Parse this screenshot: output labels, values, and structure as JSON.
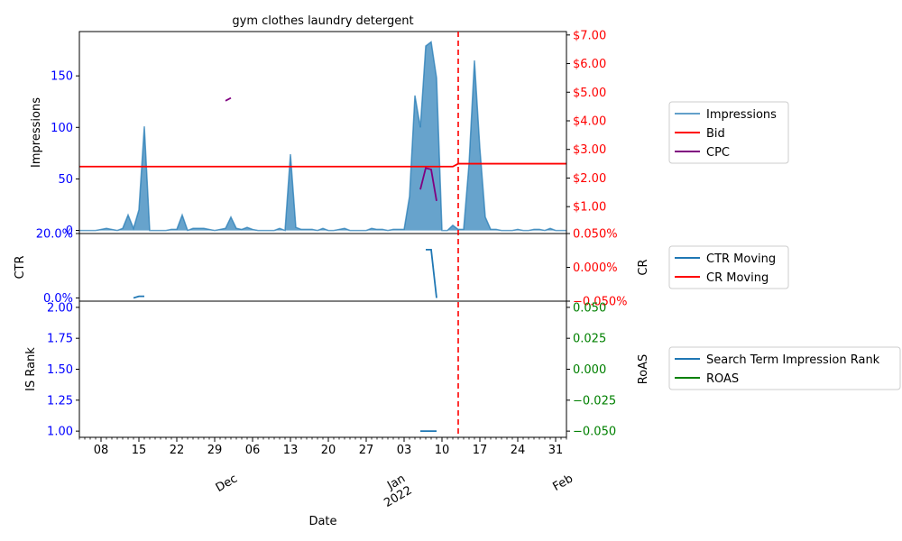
{
  "chart_data": {
    "type": "area",
    "title": "gym clothes laundry detergent",
    "x_axis": {
      "label": "Date",
      "range": [
        "2021-11-04",
        "2022-02-02"
      ],
      "day_ticks": [
        {
          "date": "2021-11-08",
          "label": "08"
        },
        {
          "date": "2021-11-15",
          "label": "15"
        },
        {
          "date": "2021-11-22",
          "label": "22"
        },
        {
          "date": "2021-11-29",
          "label": "29"
        },
        {
          "date": "2021-12-06",
          "label": "06"
        },
        {
          "date": "2021-12-13",
          "label": "13"
        },
        {
          "date": "2021-12-20",
          "label": "20"
        },
        {
          "date": "2021-12-27",
          "label": "27"
        },
        {
          "date": "2022-01-03",
          "label": "03"
        },
        {
          "date": "2022-01-10",
          "label": "10"
        },
        {
          "date": "2022-01-17",
          "label": "17"
        },
        {
          "date": "2022-01-24",
          "label": "24"
        },
        {
          "date": "2022-01-31",
          "label": "31"
        }
      ],
      "month_ticks": [
        {
          "date": "2021-12-01",
          "label": "Dec"
        },
        {
          "date": "2022-01-01",
          "label": "Jan\n2022"
        },
        {
          "date": "2022-02-01",
          "label": "Feb"
        }
      ],
      "vline_date": "2022-01-13"
    },
    "panels": [
      {
        "id": "top",
        "left_axis": {
          "label": "Impressions",
          "range": [
            -3,
            193
          ],
          "ticks": [
            0,
            50,
            100,
            150
          ],
          "tick_labels": [
            "0",
            "50",
            "100",
            "150"
          ]
        },
        "right_axis": {
          "range": [
            0.06,
            7.12
          ],
          "ticks": [
            1,
            2,
            3,
            4,
            5,
            6,
            7
          ],
          "tick_labels": [
            "$1.00",
            "$2.00",
            "$3.00",
            "$4.00",
            "$5.00",
            "$6.00",
            "$7.00"
          ]
        },
        "series": [
          {
            "name": "Impressions",
            "axis": "left",
            "kind": "area",
            "color": "#1f77b4",
            "points": [
              [
                "2021-11-04",
                0
              ],
              [
                "2021-11-05",
                0
              ],
              [
                "2021-11-06",
                0
              ],
              [
                "2021-11-07",
                0
              ],
              [
                "2021-11-08",
                1
              ],
              [
                "2021-11-09",
                2
              ],
              [
                "2021-11-10",
                1
              ],
              [
                "2021-11-11",
                0
              ],
              [
                "2021-11-12",
                2
              ],
              [
                "2021-11-13",
                15
              ],
              [
                "2021-11-14",
                2
              ],
              [
                "2021-11-15",
                20
              ],
              [
                "2021-11-16",
                101
              ],
              [
                "2021-11-17",
                0
              ],
              [
                "2021-11-18",
                0
              ],
              [
                "2021-11-19",
                0
              ],
              [
                "2021-11-20",
                0
              ],
              [
                "2021-11-21",
                1
              ],
              [
                "2021-11-22",
                1
              ],
              [
                "2021-11-23",
                15
              ],
              [
                "2021-11-24",
                0
              ],
              [
                "2021-11-25",
                2
              ],
              [
                "2021-11-26",
                2
              ],
              [
                "2021-11-27",
                2
              ],
              [
                "2021-11-28",
                1
              ],
              [
                "2021-11-29",
                0
              ],
              [
                "2021-11-30",
                1
              ],
              [
                "2021-12-01",
                2
              ],
              [
                "2021-12-02",
                13
              ],
              [
                "2021-12-03",
                2
              ],
              [
                "2021-12-04",
                1
              ],
              [
                "2021-12-05",
                3
              ],
              [
                "2021-12-06",
                1
              ],
              [
                "2021-12-07",
                0
              ],
              [
                "2021-12-08",
                0
              ],
              [
                "2021-12-09",
                0
              ],
              [
                "2021-12-10",
                0
              ],
              [
                "2021-12-11",
                2
              ],
              [
                "2021-12-12",
                0
              ],
              [
                "2021-12-13",
                74
              ],
              [
                "2021-12-14",
                3
              ],
              [
                "2021-12-15",
                1
              ],
              [
                "2021-12-16",
                1
              ],
              [
                "2021-12-17",
                1
              ],
              [
                "2021-12-18",
                0
              ],
              [
                "2021-12-19",
                2
              ],
              [
                "2021-12-20",
                0
              ],
              [
                "2021-12-21",
                0
              ],
              [
                "2021-12-22",
                1
              ],
              [
                "2021-12-23",
                2
              ],
              [
                "2021-12-24",
                0
              ],
              [
                "2021-12-25",
                0
              ],
              [
                "2021-12-26",
                0
              ],
              [
                "2021-12-27",
                0
              ],
              [
                "2021-12-28",
                2
              ],
              [
                "2021-12-29",
                1
              ],
              [
                "2021-12-30",
                1
              ],
              [
                "2021-12-31",
                0
              ],
              [
                "2022-01-01",
                1
              ],
              [
                "2022-01-02",
                1
              ],
              [
                "2022-01-03",
                1
              ],
              [
                "2022-01-04",
                33
              ],
              [
                "2022-01-05",
                131
              ],
              [
                "2022-01-06",
                100
              ],
              [
                "2022-01-07",
                179
              ],
              [
                "2022-01-08",
                183
              ],
              [
                "2022-01-09",
                148
              ],
              [
                "2022-01-10",
                0
              ],
              [
                "2022-01-11",
                0
              ],
              [
                "2022-01-12",
                5
              ],
              [
                "2022-01-13",
                1
              ],
              [
                "2022-01-14",
                1
              ],
              [
                "2022-01-15",
                65
              ],
              [
                "2022-01-16",
                165
              ],
              [
                "2022-01-17",
                80
              ],
              [
                "2022-01-18",
                13
              ],
              [
                "2022-01-19",
                1
              ],
              [
                "2022-01-20",
                1
              ],
              [
                "2022-01-21",
                0
              ],
              [
                "2022-01-22",
                0
              ],
              [
                "2022-01-23",
                0
              ],
              [
                "2022-01-24",
                1
              ],
              [
                "2022-01-25",
                0
              ],
              [
                "2022-01-26",
                0
              ],
              [
                "2022-01-27",
                1
              ],
              [
                "2022-01-28",
                1
              ],
              [
                "2022-01-29",
                0
              ],
              [
                "2022-01-30",
                2
              ],
              [
                "2022-01-31",
                0
              ],
              [
                "2022-02-01",
                0
              ],
              [
                "2022-02-02",
                0
              ]
            ]
          },
          {
            "name": "Bid",
            "axis": "right",
            "kind": "line",
            "color": "#ff0000",
            "points": [
              [
                "2021-11-04",
                2.4
              ],
              [
                "2022-01-12",
                2.4
              ],
              [
                "2022-01-13",
                2.5
              ],
              [
                "2022-02-02",
                2.5
              ]
            ]
          },
          {
            "name": "CPC",
            "axis": "right",
            "kind": "line",
            "color": "#800080",
            "segments": [
              [
                [
                  "2021-12-01",
                  4.7
                ],
                [
                  "2021-12-02",
                  4.8
                ]
              ],
              [
                [
                  "2022-01-06",
                  1.6
                ],
                [
                  "2022-01-07",
                  2.35
                ],
                [
                  "2022-01-08",
                  2.3
                ],
                [
                  "2022-01-09",
                  1.2
                ]
              ]
            ]
          }
        ],
        "legend": [
          "Impressions",
          "Bid",
          "CPC"
        ]
      },
      {
        "id": "middle",
        "left_axis": {
          "label": "CTR",
          "range": [
            -0.01,
            0.2
          ],
          "ticks": [
            0,
            0.2
          ],
          "tick_labels": [
            "0.0%",
            "20.0%"
          ]
        },
        "right_axis": {
          "label": "CR",
          "range": [
            -0.05,
            0.05
          ],
          "ticks": [
            -0.05,
            0,
            0.05
          ],
          "tick_labels": [
            "−0.050%",
            "0.000%",
            "0.050%"
          ]
        },
        "series": [
          {
            "name": "CTR Moving",
            "axis": "left",
            "kind": "line",
            "color": "#1f77b4",
            "segments": [
              [
                [
                  "2021-11-14",
                  0
                ],
                [
                  "2021-11-15",
                  0.005
                ],
                [
                  "2021-11-16",
                  0.005
                ]
              ],
              [
                [
                  "2022-01-07",
                  0.15
                ],
                [
                  "2022-01-08",
                  0.15
                ],
                [
                  "2022-01-09",
                  0
                ]
              ]
            ]
          },
          {
            "name": "CR Moving",
            "axis": "right",
            "kind": "line",
            "color": "#ff0000",
            "points": []
          }
        ],
        "legend": [
          "CTR Moving",
          "CR Moving"
        ]
      },
      {
        "id": "bottom",
        "left_axis": {
          "label": "IS Rank",
          "range": [
            0.95,
            2.05
          ],
          "ticks": [
            1.0,
            1.25,
            1.5,
            1.75,
            2.0
          ],
          "tick_labels": [
            "1.00",
            "1.25",
            "1.50",
            "1.75",
            "2.00"
          ]
        },
        "right_axis": {
          "label": "RoAS",
          "range": [
            -0.055,
            0.055
          ],
          "ticks": [
            -0.05,
            -0.025,
            0,
            0.025,
            0.05
          ],
          "tick_labels": [
            "−0.050",
            "−0.025",
            "0.000",
            "0.025",
            "0.050"
          ]
        },
        "series": [
          {
            "name": "Search Term Impression Rank",
            "axis": "left",
            "kind": "line",
            "color": "#1f77b4",
            "points": [
              [
                "2022-01-06",
                1.0
              ],
              [
                "2022-01-09",
                1.0
              ]
            ]
          },
          {
            "name": "ROAS",
            "axis": "right",
            "kind": "line",
            "color": "#008000",
            "points": []
          }
        ],
        "legend": [
          "Search Term Impression Rank",
          "ROAS"
        ]
      }
    ]
  }
}
